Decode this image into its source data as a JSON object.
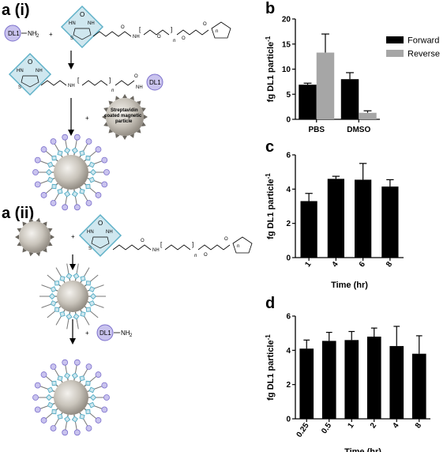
{
  "panels": {
    "a_i": "a (i)",
    "a_ii": "a (ii)",
    "b": "b",
    "c": "c",
    "d": "d"
  },
  "scheme": {
    "dl1_label": "DL1",
    "amine": "NH",
    "amine_sub": "2",
    "plus": "+",
    "hn": "HN",
    "nh": "NH",
    "o": "O",
    "s": "S",
    "n": "n",
    "bead_line1": "Streptavidin",
    "bead_line2": "coated magnetic",
    "bead_line3": "particle"
  },
  "colors": {
    "bar_dark": "#000000",
    "bar_light": "#a6a6a6",
    "biotin_fill": "#cfe7ef",
    "biotin_stroke": "#5fb1c8",
    "dl1_fill": "#c9c3ee",
    "dl1_stroke": "#7b6fcc",
    "bead": "#bdb7ae"
  },
  "chart_data": [
    {
      "id": "b",
      "type": "bar",
      "categories": [
        "PBS",
        "DMSO"
      ],
      "series": [
        {
          "name": "Forward",
          "values": [
            6.9,
            8.0
          ],
          "errors": [
            0.3,
            1.3
          ],
          "color": "#000000"
        },
        {
          "name": "Reverse",
          "values": [
            13.3,
            1.3
          ],
          "errors": [
            3.7,
            0.4
          ],
          "color": "#a6a6a6"
        }
      ],
      "ylabel": "fg DL1 particle",
      "ylabel_sup": "-1",
      "ylim": [
        0,
        20
      ],
      "yticks": [
        0,
        5,
        10,
        15,
        20
      ],
      "legend": "top-right"
    },
    {
      "id": "c",
      "type": "bar",
      "categories": [
        "1",
        "4",
        "6",
        "8"
      ],
      "values": [
        3.3,
        4.6,
        4.55,
        4.15
      ],
      "errors": [
        0.45,
        0.15,
        0.95,
        0.4
      ],
      "xlabel": "Time (hr)",
      "ylabel": "fg DL1 particle",
      "ylabel_sup": "-1",
      "ylim": [
        0,
        6
      ],
      "yticks": [
        0,
        2,
        4,
        6
      ]
    },
    {
      "id": "d",
      "type": "bar",
      "categories": [
        "0.25",
        "0.5",
        "1",
        "2",
        "4",
        "8"
      ],
      "values": [
        4.1,
        4.55,
        4.6,
        4.8,
        4.25,
        3.8
      ],
      "errors": [
        0.5,
        0.5,
        0.5,
        0.5,
        1.15,
        1.05
      ],
      "xlabel": "Time (hr)",
      "ylabel": "fg DL1 particle",
      "ylabel_sup": "-1",
      "ylim": [
        0,
        6
      ],
      "yticks": [
        0,
        2,
        4,
        6
      ]
    }
  ]
}
